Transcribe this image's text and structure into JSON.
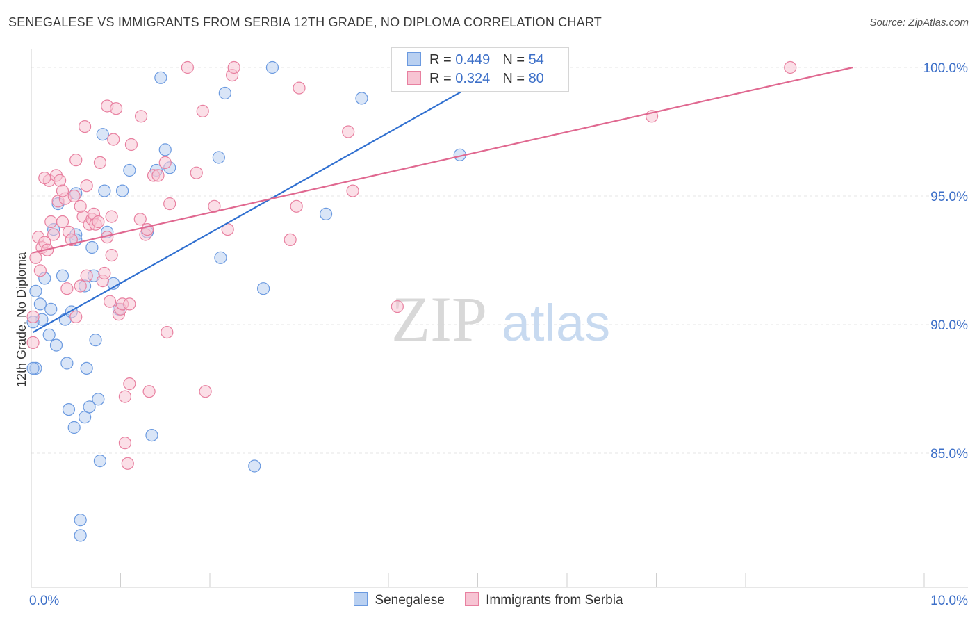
{
  "title": "SENEGALESE VS IMMIGRANTS FROM SERBIA 12TH GRADE, NO DIPLOMA CORRELATION CHART",
  "source": "Source: ZipAtlas.com",
  "watermark": {
    "zip": "ZIP",
    "atlas": "atlas"
  },
  "legend": {
    "rows": [
      {
        "r_label": "R = ",
        "r_value": "0.449",
        "n_label": "N = ",
        "n_value": "54",
        "color": "#6b9ae0",
        "fill": "#b9d0f1"
      },
      {
        "r_label": "R = ",
        "r_value": "0.324",
        "n_label": "N = ",
        "n_value": "80",
        "color": "#e880a0",
        "fill": "#f7c4d3"
      }
    ]
  },
  "bottom_legend": [
    {
      "label": "Senegalese",
      "color": "#6b9ae0",
      "fill": "#b9d0f1"
    },
    {
      "label": "Immigrants from Serbia",
      "color": "#e880a0",
      "fill": "#f7c4d3"
    }
  ],
  "chart_data": {
    "type": "scatter",
    "title": "SENEGALESE VS IMMIGRANTS FROM SERBIA 12TH GRADE, NO DIPLOMA CORRELATION CHART",
    "xlabel": "",
    "ylabel": "12th Grade, No Diploma",
    "xlim": [
      0.0,
      10.0
    ],
    "ylim": [
      80.0,
      100.5
    ],
    "x_tick_labels": [
      {
        "value": 0.0,
        "label": "0.0%"
      },
      {
        "value": 10.0,
        "label": "10.0%"
      }
    ],
    "y_tick_labels": [
      {
        "value": 85.0,
        "label": "85.0%"
      },
      {
        "value": 90.0,
        "label": "90.0%"
      },
      {
        "value": 95.0,
        "label": "95.0%"
      },
      {
        "value": 100.0,
        "label": "100.0%"
      }
    ],
    "series": [
      {
        "name": "Senegalese",
        "stroke": "#6b9ae0",
        "fill": "#b9d0f1",
        "trend_color": "#2f6fd0",
        "trend": {
          "x": [
            0.02,
            5.3
          ],
          "y": [
            89.7,
            100.0
          ]
        },
        "points": [
          [
            0.05,
            88.3
          ],
          [
            0.05,
            91.3
          ],
          [
            0.1,
            90.8
          ],
          [
            0.12,
            90.2
          ],
          [
            0.15,
            91.8
          ],
          [
            0.2,
            89.6
          ],
          [
            0.22,
            90.6
          ],
          [
            0.25,
            93.7
          ],
          [
            0.28,
            89.2
          ],
          [
            0.3,
            94.7
          ],
          [
            0.35,
            91.9
          ],
          [
            0.38,
            90.2
          ],
          [
            0.4,
            88.5
          ],
          [
            0.42,
            86.7
          ],
          [
            0.45,
            90.5
          ],
          [
            0.48,
            86.0
          ],
          [
            0.5,
            93.5
          ],
          [
            0.5,
            93.3
          ],
          [
            0.5,
            95.1
          ],
          [
            0.55,
            82.4
          ],
          [
            0.55,
            81.8
          ],
          [
            0.6,
            91.5
          ],
          [
            0.6,
            86.4
          ],
          [
            0.62,
            88.3
          ],
          [
            0.65,
            86.8
          ],
          [
            0.68,
            93.0
          ],
          [
            0.7,
            91.9
          ],
          [
            0.72,
            89.4
          ],
          [
            0.75,
            87.1
          ],
          [
            0.77,
            84.7
          ],
          [
            0.8,
            97.4
          ],
          [
            0.82,
            95.2
          ],
          [
            0.85,
            93.6
          ],
          [
            0.92,
            91.6
          ],
          [
            0.98,
            90.6
          ],
          [
            1.02,
            95.2
          ],
          [
            1.1,
            96.0
          ],
          [
            1.3,
            93.6
          ],
          [
            1.35,
            85.7
          ],
          [
            1.4,
            96.0
          ],
          [
            1.45,
            99.6
          ],
          [
            1.5,
            96.8
          ],
          [
            1.55,
            96.1
          ],
          [
            2.1,
            96.5
          ],
          [
            2.12,
            92.6
          ],
          [
            2.17,
            99.0
          ],
          [
            2.5,
            84.5
          ],
          [
            2.6,
            91.4
          ],
          [
            2.7,
            100.0
          ],
          [
            3.3,
            94.3
          ],
          [
            3.7,
            98.8
          ],
          [
            4.8,
            96.6
          ],
          [
            0.02,
            88.3
          ],
          [
            0.02,
            90.1
          ]
        ]
      },
      {
        "name": "Immigrants from Serbia",
        "stroke": "#e880a0",
        "fill": "#f7c4d3",
        "trend_color": "#e06890",
        "trend": {
          "x": [
            0.02,
            9.2
          ],
          "y": [
            92.8,
            100.0
          ]
        },
        "points": [
          [
            0.02,
            89.3
          ],
          [
            0.02,
            90.3
          ],
          [
            0.05,
            92.6
          ],
          [
            0.08,
            93.4
          ],
          [
            0.1,
            92.1
          ],
          [
            0.12,
            93.0
          ],
          [
            0.15,
            93.2
          ],
          [
            0.18,
            92.9
          ],
          [
            0.2,
            95.6
          ],
          [
            0.22,
            94.0
          ],
          [
            0.25,
            93.5
          ],
          [
            0.28,
            95.8
          ],
          [
            0.3,
            94.8
          ],
          [
            0.32,
            95.6
          ],
          [
            0.35,
            94.0
          ],
          [
            0.38,
            94.9
          ],
          [
            0.4,
            91.4
          ],
          [
            0.42,
            93.6
          ],
          [
            0.45,
            93.3
          ],
          [
            0.48,
            95.0
          ],
          [
            0.5,
            90.3
          ],
          [
            0.5,
            96.4
          ],
          [
            0.55,
            91.5
          ],
          [
            0.58,
            94.2
          ],
          [
            0.6,
            97.7
          ],
          [
            0.62,
            95.4
          ],
          [
            0.62,
            91.9
          ],
          [
            0.65,
            93.9
          ],
          [
            0.68,
            94.1
          ],
          [
            0.7,
            94.3
          ],
          [
            0.72,
            93.9
          ],
          [
            0.75,
            94.0
          ],
          [
            0.77,
            96.3
          ],
          [
            0.8,
            91.7
          ],
          [
            0.82,
            92.0
          ],
          [
            0.85,
            93.4
          ],
          [
            0.85,
            98.5
          ],
          [
            0.88,
            90.9
          ],
          [
            0.9,
            92.7
          ],
          [
            0.9,
            94.2
          ],
          [
            0.92,
            97.2
          ],
          [
            0.95,
            98.4
          ],
          [
            0.98,
            90.4
          ],
          [
            1.0,
            90.6
          ],
          [
            1.02,
            90.8
          ],
          [
            1.05,
            85.4
          ],
          [
            1.05,
            87.2
          ],
          [
            1.08,
            84.6
          ],
          [
            1.1,
            90.8
          ],
          [
            1.1,
            87.7
          ],
          [
            1.12,
            97.0
          ],
          [
            1.22,
            94.1
          ],
          [
            1.23,
            98.1
          ],
          [
            1.28,
            93.5
          ],
          [
            1.32,
            87.4
          ],
          [
            1.37,
            95.8
          ],
          [
            1.42,
            95.8
          ],
          [
            1.5,
            96.3
          ],
          [
            1.52,
            89.7
          ],
          [
            1.55,
            94.7
          ],
          [
            1.75,
            100.0
          ],
          [
            1.85,
            95.9
          ],
          [
            1.92,
            98.3
          ],
          [
            1.95,
            87.4
          ],
          [
            2.05,
            94.6
          ],
          [
            2.2,
            93.7
          ],
          [
            2.25,
            99.7
          ],
          [
            2.27,
            100.0
          ],
          [
            2.9,
            93.3
          ],
          [
            2.97,
            94.6
          ],
          [
            3.0,
            99.2
          ],
          [
            3.55,
            97.5
          ],
          [
            3.6,
            95.2
          ],
          [
            4.1,
            90.7
          ],
          [
            6.95,
            98.1
          ],
          [
            8.5,
            100.0
          ],
          [
            0.15,
            95.7
          ],
          [
            0.35,
            95.2
          ],
          [
            0.55,
            94.6
          ],
          [
            1.3,
            93.7
          ]
        ]
      }
    ]
  }
}
